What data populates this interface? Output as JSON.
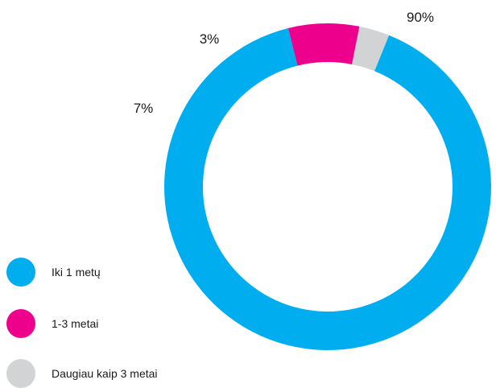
{
  "chart_data": {
    "type": "pie",
    "style": "donut",
    "title": "",
    "legend_position": "bottom-left",
    "slices": [
      {
        "label": "Iki 1 metų",
        "value": 90,
        "display": "90%",
        "color": "#00aeef"
      },
      {
        "label": "1-3 metai",
        "value": 7,
        "display": "7%",
        "color": "#ec008c"
      },
      {
        "label": "Daugiau kaip 3 metai",
        "value": 3,
        "display": "3%",
        "color": "#d1d3d4"
      }
    ]
  },
  "legend": {
    "items": [
      {
        "label": "Iki 1 metų",
        "color": "#00aeef"
      },
      {
        "label": "1-3 metai",
        "color": "#ec008c"
      },
      {
        "label": "Daugiau kaip 3 metai",
        "color": "#d1d3d4"
      }
    ]
  }
}
